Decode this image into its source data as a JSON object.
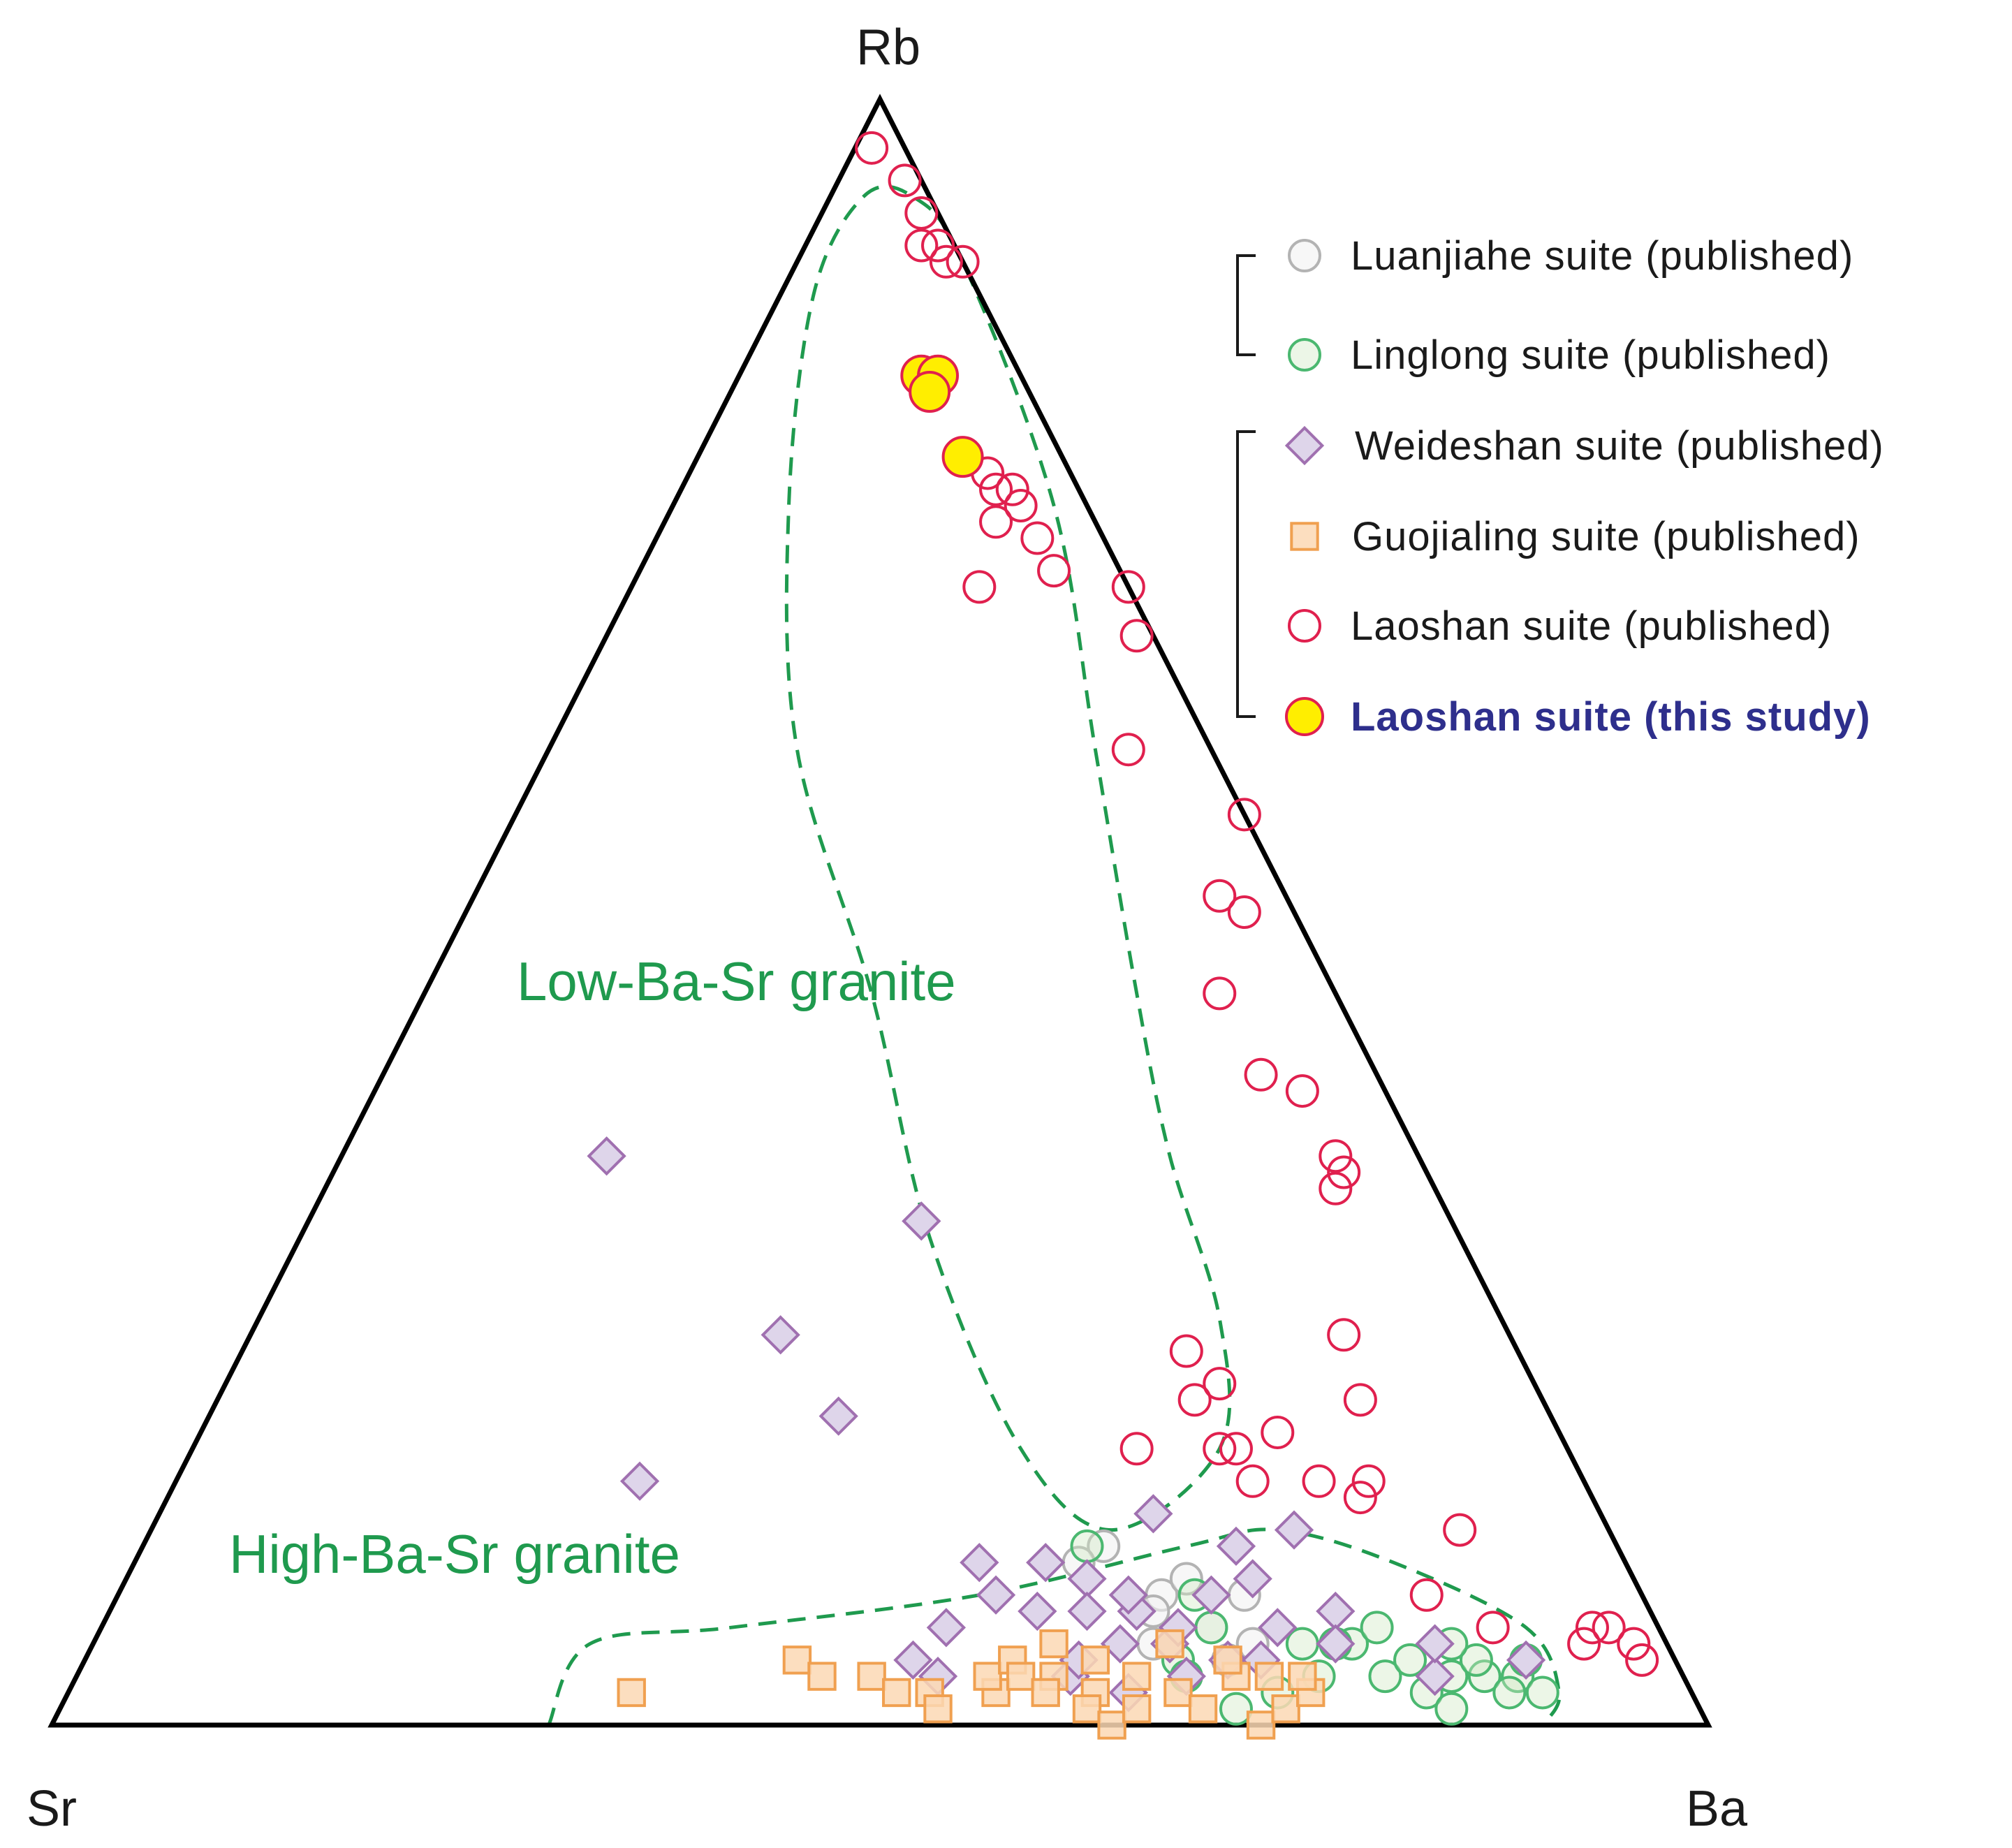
{
  "chart_data": {
    "type": "scatter",
    "subtype": "ternary",
    "vertices": {
      "top": "Rb",
      "left": "Sr",
      "right": "Ba"
    },
    "coordinate_order": [
      "Rb",
      "Sr",
      "Ba"
    ],
    "region_labels": [
      {
        "text": "Low-Ba-Sr granite",
        "color": "#1f9a4e"
      },
      {
        "text": "High-Ba-Sr granite",
        "color": "#1f9a4e"
      }
    ],
    "fields": [
      {
        "name": "low-ba-sr-field",
        "style": "dashed",
        "color": "#1f9a4e",
        "boundary": [
          [
            0.94,
            0.04,
            0.02
          ],
          [
            0.94,
            0.01,
            0.05
          ],
          [
            0.9,
            0.0,
            0.1
          ],
          [
            0.75,
            0.02,
            0.23
          ],
          [
            0.6,
            0.07,
            0.33
          ],
          [
            0.45,
            0.12,
            0.43
          ],
          [
            0.35,
            0.15,
            0.5
          ],
          [
            0.25,
            0.17,
            0.58
          ],
          [
            0.17,
            0.21,
            0.62
          ],
          [
            0.12,
            0.3,
            0.58
          ],
          [
            0.17,
            0.33,
            0.5
          ],
          [
            0.3,
            0.32,
            0.38
          ],
          [
            0.45,
            0.28,
            0.27
          ],
          [
            0.6,
            0.25,
            0.15
          ],
          [
            0.75,
            0.18,
            0.07
          ],
          [
            0.88,
            0.1,
            0.02
          ],
          [
            0.94,
            0.04,
            0.02
          ]
        ]
      },
      {
        "name": "high-ba-sr-field",
        "style": "dashed",
        "color": "#1f9a4e",
        "boundary": [
          [
            0.0,
            0.7,
            0.3
          ],
          [
            0.05,
            0.65,
            0.3
          ],
          [
            0.06,
            0.56,
            0.38
          ],
          [
            0.08,
            0.4,
            0.52
          ],
          [
            0.11,
            0.26,
            0.63
          ],
          [
            0.12,
            0.2,
            0.68
          ],
          [
            0.1,
            0.14,
            0.76
          ],
          [
            0.06,
            0.08,
            0.86
          ],
          [
            0.02,
            0.08,
            0.9
          ],
          [
            0.0,
            0.1,
            0.9
          ]
        ]
      }
    ],
    "series": [
      {
        "name": "Luanjiahe suite (published)",
        "marker": "circle",
        "fill": "#f2f2f2",
        "stroke": "#b3b3b3",
        "fill_opacity": 0.6,
        "points": [
          [
            0.11,
            0.31,
            0.58
          ],
          [
            0.08,
            0.29,
            0.63
          ],
          [
            0.06,
            0.27,
            0.67
          ],
          [
            0.09,
            0.27,
            0.64
          ],
          [
            0.07,
            0.3,
            0.63
          ],
          [
            0.05,
            0.31,
            0.64
          ],
          [
            0.1,
            0.33,
            0.57
          ],
          [
            0.05,
            0.25,
            0.7
          ],
          [
            0.04,
            0.27,
            0.69
          ],
          [
            0.08,
            0.24,
            0.68
          ]
        ]
      },
      {
        "name": "Linglong suite (published)",
        "marker": "circle",
        "fill": "#cfe8c4",
        "stroke": "#4bb870",
        "fill_opacity": 0.4,
        "points": [
          [
            0.05,
            0.19,
            0.76
          ],
          [
            0.03,
            0.18,
            0.79
          ],
          [
            0.04,
            0.16,
            0.8
          ],
          [
            0.03,
            0.14,
            0.83
          ],
          [
            0.02,
            0.16,
            0.82
          ],
          [
            0.03,
            0.12,
            0.85
          ],
          [
            0.04,
            0.12,
            0.84
          ],
          [
            0.03,
            0.1,
            0.87
          ],
          [
            0.04,
            0.09,
            0.87
          ],
          [
            0.02,
            0.11,
            0.87
          ],
          [
            0.02,
            0.09,
            0.89
          ],
          [
            0.05,
            0.22,
            0.73
          ],
          [
            0.06,
            0.17,
            0.77
          ],
          [
            0.03,
            0.22,
            0.75
          ],
          [
            0.01,
            0.15,
            0.84
          ],
          [
            0.02,
            0.25,
            0.73
          ],
          [
            0.06,
            0.27,
            0.67
          ],
          [
            0.04,
            0.3,
            0.66
          ],
          [
            0.08,
            0.27,
            0.65
          ],
          [
            0.05,
            0.2,
            0.75
          ],
          [
            0.01,
            0.28,
            0.71
          ],
          [
            0.11,
            0.32,
            0.57
          ],
          [
            0.03,
            0.3,
            0.67
          ],
          [
            0.05,
            0.13,
            0.82
          ]
        ]
      },
      {
        "name": "Weideshan suite (published)",
        "marker": "diamond",
        "fill": "#ded5ea",
        "stroke": "#a070b0",
        "fill_opacity": 1,
        "points": [
          [
            0.35,
            0.49,
            0.16
          ],
          [
            0.31,
            0.32,
            0.37
          ],
          [
            0.24,
            0.44,
            0.32
          ],
          [
            0.19,
            0.43,
            0.38
          ],
          [
            0.15,
            0.57,
            0.28
          ],
          [
            0.13,
            0.27,
            0.6
          ],
          [
            0.11,
            0.23,
            0.66
          ],
          [
            0.12,
            0.19,
            0.69
          ],
          [
            0.09,
            0.23,
            0.68
          ],
          [
            0.07,
            0.19,
            0.74
          ],
          [
            0.05,
            0.2,
            0.75
          ],
          [
            0.03,
            0.15,
            0.82
          ],
          [
            0.1,
            0.39,
            0.51
          ],
          [
            0.08,
            0.39,
            0.53
          ],
          [
            0.1,
            0.35,
            0.55
          ],
          [
            0.09,
            0.33,
            0.58
          ],
          [
            0.07,
            0.34,
            0.59
          ],
          [
            0.06,
            0.43,
            0.51
          ],
          [
            0.04,
            0.46,
            0.5
          ],
          [
            0.03,
            0.45,
            0.52
          ],
          [
            0.05,
            0.3,
            0.65
          ],
          [
            0.04,
            0.27,
            0.69
          ],
          [
            0.06,
            0.23,
            0.71
          ],
          [
            0.07,
            0.31,
            0.62
          ],
          [
            0.08,
            0.26,
            0.66
          ],
          [
            0.03,
            0.37,
            0.6
          ],
          [
            0.02,
            0.34,
            0.64
          ],
          [
            0.04,
            0.36,
            0.6
          ],
          [
            0.05,
            0.33,
            0.62
          ],
          [
            0.06,
            0.29,
            0.65
          ],
          [
            0.04,
            0.09,
            0.87
          ],
          [
            0.07,
            0.37,
            0.56
          ],
          [
            0.08,
            0.31,
            0.61
          ],
          [
            0.03,
            0.3,
            0.67
          ],
          [
            0.04,
            0.25,
            0.71
          ],
          [
            0.05,
            0.14,
            0.81
          ]
        ]
      },
      {
        "name": "Guojialing suite (published)",
        "marker": "square",
        "fill": "#fbd8b4",
        "stroke": "#f0a050",
        "fill_opacity": 0.85,
        "points": [
          [
            0.02,
            0.64,
            0.34
          ],
          [
            0.04,
            0.53,
            0.43
          ],
          [
            0.03,
            0.52,
            0.45
          ],
          [
            0.03,
            0.49,
            0.48
          ],
          [
            0.02,
            0.48,
            0.5
          ],
          [
            0.02,
            0.46,
            0.52
          ],
          [
            0.01,
            0.46,
            0.53
          ],
          [
            0.02,
            0.42,
            0.56
          ],
          [
            0.03,
            0.42,
            0.55
          ],
          [
            0.04,
            0.4,
            0.56
          ],
          [
            0.03,
            0.38,
            0.59
          ],
          [
            0.02,
            0.36,
            0.62
          ],
          [
            0.01,
            0.37,
            0.62
          ],
          [
            0.0,
            0.36,
            0.64
          ],
          [
            0.01,
            0.34,
            0.65
          ],
          [
            0.04,
            0.35,
            0.61
          ],
          [
            0.05,
            0.37,
            0.58
          ],
          [
            0.03,
            0.33,
            0.64
          ],
          [
            0.02,
            0.31,
            0.67
          ],
          [
            0.01,
            0.3,
            0.69
          ],
          [
            0.03,
            0.27,
            0.7
          ],
          [
            0.0,
            0.27,
            0.73
          ],
          [
            0.01,
            0.25,
            0.74
          ],
          [
            0.03,
            0.25,
            0.72
          ],
          [
            0.02,
            0.23,
            0.75
          ],
          [
            0.03,
            0.23,
            0.74
          ],
          [
            0.04,
            0.27,
            0.69
          ],
          [
            0.05,
            0.3,
            0.65
          ],
          [
            0.03,
            0.4,
            0.57
          ],
          [
            0.02,
            0.39,
            0.59
          ]
        ]
      },
      {
        "name": "Laoshan suite (published)",
        "marker": "circle",
        "fill": "none",
        "stroke": "#e0204e",
        "fill_opacity": 0,
        "points": [
          [
            0.97,
            0.02,
            0.01
          ],
          [
            0.95,
            0.01,
            0.04
          ],
          [
            0.93,
            0.01,
            0.06
          ],
          [
            0.91,
            0.02,
            0.07
          ],
          [
            0.91,
            0.01,
            0.08
          ],
          [
            0.9,
            0.01,
            0.09
          ],
          [
            0.9,
            0.0,
            0.1
          ],
          [
            0.77,
            0.05,
            0.18
          ],
          [
            0.76,
            0.05,
            0.19
          ],
          [
            0.76,
            0.04,
            0.2
          ],
          [
            0.75,
            0.04,
            0.21
          ],
          [
            0.74,
            0.06,
            0.2
          ],
          [
            0.73,
            0.04,
            0.23
          ],
          [
            0.7,
            0.09,
            0.21
          ],
          [
            0.71,
            0.04,
            0.25
          ],
          [
            0.67,
            0.01,
            0.32
          ],
          [
            0.7,
            0.0,
            0.3
          ],
          [
            0.6,
            0.05,
            0.35
          ],
          [
            0.56,
            0.0,
            0.44
          ],
          [
            0.51,
            0.04,
            0.45
          ],
          [
            0.5,
            0.03,
            0.47
          ],
          [
            0.4,
            0.07,
            0.53
          ],
          [
            0.39,
            0.05,
            0.56
          ],
          [
            0.45,
            0.07,
            0.48
          ],
          [
            0.35,
            0.05,
            0.6
          ],
          [
            0.34,
            0.05,
            0.61
          ],
          [
            0.33,
            0.06,
            0.61
          ],
          [
            0.2,
            0.11,
            0.69
          ],
          [
            0.24,
            0.1,
            0.66
          ],
          [
            0.2,
            0.21,
            0.59
          ],
          [
            0.21,
            0.19,
            0.6
          ],
          [
            0.18,
            0.17,
            0.65
          ],
          [
            0.15,
            0.2,
            0.65
          ],
          [
            0.23,
            0.2,
            0.57
          ],
          [
            0.17,
            0.26,
            0.57
          ],
          [
            0.17,
            0.21,
            0.62
          ],
          [
            0.17,
            0.2,
            0.63
          ],
          [
            0.15,
            0.16,
            0.69
          ],
          [
            0.15,
            0.13,
            0.72
          ],
          [
            0.12,
            0.09,
            0.79
          ],
          [
            0.08,
            0.13,
            0.79
          ],
          [
            0.06,
            0.1,
            0.84
          ],
          [
            0.06,
            0.04,
            0.9
          ],
          [
            0.06,
            0.03,
            0.91
          ],
          [
            0.05,
            0.05,
            0.9
          ],
          [
            0.05,
            0.02,
            0.93
          ],
          [
            0.04,
            0.02,
            0.94
          ],
          [
            0.14,
            0.14,
            0.72
          ]
        ]
      },
      {
        "name": "Laoshan suite (this study)",
        "marker": "circle",
        "fill": "#ffee00",
        "stroke": "#e0204e",
        "fill_opacity": 1,
        "points": [
          [
            0.83,
            0.06,
            0.11
          ],
          [
            0.83,
            0.05,
            0.12
          ],
          [
            0.82,
            0.06,
            0.12
          ],
          [
            0.78,
            0.06,
            0.16
          ]
        ]
      }
    ],
    "legend": {
      "position": "top-right",
      "groups": [
        [
          0,
          1
        ],
        [
          2,
          3,
          4,
          5
        ]
      ],
      "highlight": 5,
      "highlight_color": "#2e2f8c"
    }
  }
}
